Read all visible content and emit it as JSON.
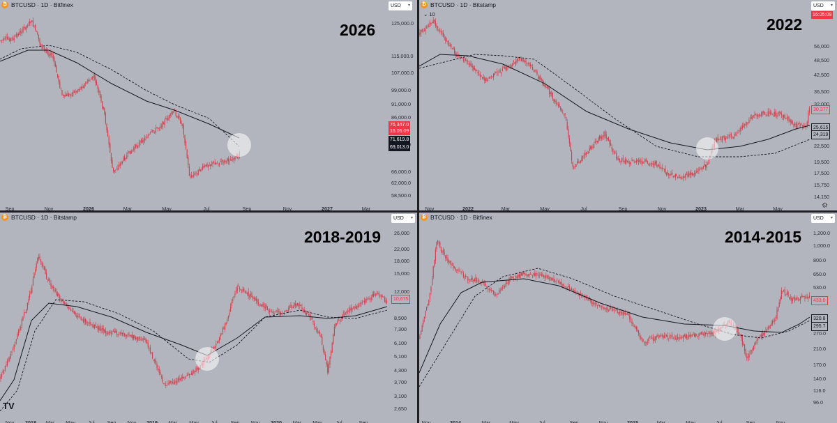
{
  "colors": {
    "candle": "#d1424e",
    "ma": "#131722",
    "highlight": "#ffffff",
    "bg": "#b2b5be"
  },
  "panels": [
    {
      "id": "p2026",
      "symbol": "BTCUSD · 1D · Bitfinex",
      "currency": "USD",
      "period": "2026",
      "yticks": [
        "125,000.0",
        "115,000.0",
        "107,000.0",
        "99,000.0",
        "91,000.0",
        "86,000.0",
        "80,000.0",
        "66,000.0",
        "62,000.0",
        "58,500.0",
        "55,300.0"
      ],
      "xticks": [
        "Sep",
        "Nov",
        "2026",
        "Mar",
        "May",
        "Jul",
        "Sep",
        "Nov",
        "2027",
        "Mar"
      ],
      "bold_xticks": [
        "2026",
        "2027"
      ],
      "price_tag": "76,347.0",
      "price_time": "16:05:09",
      "ma_tags": [
        "71,619.8",
        "69,013.0"
      ]
    },
    {
      "id": "p2022",
      "symbol": "BTCUSD · 1D · Bitstamp",
      "currency": "USD",
      "period": "2022",
      "volume": "10",
      "yticks": [
        "56,000",
        "48,500",
        "42,500",
        "36,500",
        "32,000",
        "22,500",
        "19,500",
        "17,500",
        "15,750",
        "14,150"
      ],
      "xticks": [
        "Nov",
        "2022",
        "Mar",
        "May",
        "Jul",
        "Sep",
        "Nov",
        "2023",
        "Mar",
        "May"
      ],
      "bold_xticks": [
        "2022",
        "2023"
      ],
      "price_tag": "16:05:09",
      "tags": [
        "30,377",
        "25,615",
        "24,319"
      ]
    },
    {
      "id": "p2018",
      "symbol": "BTCUSD · 1D · Bitstamp",
      "currency": "USD",
      "period": "2018-2019",
      "yticks": [
        "26,000",
        "22,000",
        "18,000",
        "15,000",
        "12,000",
        "10,000",
        "8,500",
        "7,300",
        "6,100",
        "5,100",
        "4,300",
        "3,700",
        "3,100",
        "2,650"
      ],
      "xticks": [
        "Nov",
        "2018",
        "Mar",
        "May",
        "Jul",
        "Sep",
        "Nov",
        "2019",
        "Mar",
        "May",
        "Jul",
        "Sep",
        "Nov",
        "2020",
        "Mar",
        "May",
        "Jul",
        "Sep"
      ],
      "bold_xticks": [
        "2018",
        "2019",
        "2020"
      ],
      "tags": [
        "10,675"
      ]
    },
    {
      "id": "p2014",
      "symbol": "BTCUSD · 1D · Bitfinex",
      "currency": "USD",
      "period": "2014-2015",
      "yticks": [
        "1,200.0",
        "1,000.0",
        "800.0",
        "650.0",
        "530.0",
        "320.8",
        "270.0",
        "210.0",
        "170.0",
        "140.0",
        "116.0",
        "96.0"
      ],
      "xticks": [
        "Nov",
        "2014",
        "Mar",
        "May",
        "Jul",
        "Sep",
        "Nov",
        "2015",
        "Mar",
        "May",
        "Jul",
        "Sep",
        "Nov"
      ],
      "bold_xticks": [
        "2014",
        "2015"
      ],
      "tags": [
        "433.0",
        "320.8",
        "295.7"
      ]
    }
  ],
  "chart_data": [
    {
      "type": "line",
      "title": "2026",
      "series": [
        {
          "name": "BTCUSD",
          "x": [
            "Sep",
            "Nov",
            "2026",
            "Mar",
            "May",
            "Jul",
            "Sep"
          ],
          "values": [
            111000,
            110000,
            90000,
            68000,
            86000,
            64000,
            76347
          ]
        }
      ],
      "ylim": [
        55300,
        125000
      ]
    },
    {
      "type": "line",
      "title": "2022",
      "series": [
        {
          "name": "BTCUSD",
          "x": [
            "Nov",
            "2022",
            "Mar",
            "May",
            "Jul",
            "Sep",
            "Nov",
            "2023",
            "Mar",
            "May"
          ],
          "values": [
            60000,
            44000,
            42000,
            30000,
            21000,
            20000,
            16500,
            23000,
            28000,
            27000
          ]
        }
      ],
      "ylim": [
        14150,
        64000
      ]
    },
    {
      "type": "line",
      "title": "2018-2019",
      "series": [
        {
          "name": "BTCUSD",
          "x": [
            "Nov",
            "2018",
            "Mar",
            "May",
            "Jul",
            "Sep",
            "Nov",
            "2019",
            "Mar",
            "May",
            "Jul",
            "Sep",
            "Nov",
            "2020",
            "Mar",
            "May",
            "Jul",
            "Sep"
          ],
          "values": [
            7000,
            15000,
            9000,
            8500,
            7000,
            6500,
            5500,
            3600,
            4000,
            8000,
            11000,
            9500,
            7500,
            9500,
            5000,
            9500,
            10000,
            10675
          ]
        }
      ],
      "ylim": [
        2650,
        26000
      ]
    },
    {
      "type": "line",
      "title": "2014-2015",
      "series": [
        {
          "name": "BTCUSD",
          "x": [
            "Nov",
            "2014",
            "Mar",
            "May",
            "Jul",
            "Sep",
            "Nov",
            "2015",
            "Mar",
            "May",
            "Jul",
            "Sep",
            "Nov"
          ],
          "values": [
            500,
            900,
            600,
            550,
            620,
            450,
            380,
            260,
            250,
            240,
            280,
            240,
            433
          ]
        }
      ],
      "ylim": [
        96,
        1200
      ]
    }
  ]
}
